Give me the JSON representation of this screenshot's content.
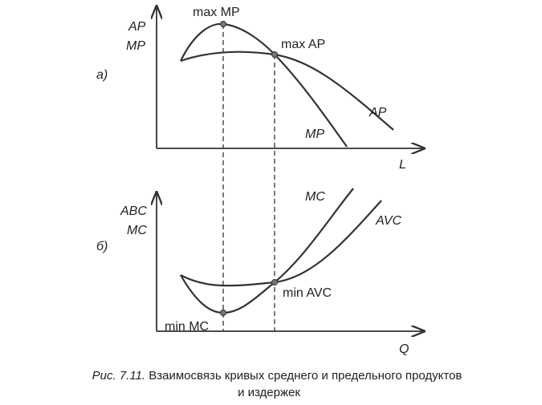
{
  "panel_a": {
    "label": "а)",
    "y_axis_label": [
      "AP",
      "MP"
    ],
    "x_axis_label": "L",
    "annotations": {
      "max_mp": "max MP",
      "max_ap": "max AP"
    },
    "curves": {
      "ap": "AP",
      "mp": "MP"
    }
  },
  "panel_b": {
    "label": "б)",
    "y_axis_label": [
      "ABC",
      "MC"
    ],
    "x_axis_label": "Q",
    "annotations": {
      "min_avc": "min AVC",
      "min_mc": "min MC"
    },
    "curves": {
      "mc": "MC",
      "avc": "AVC"
    }
  },
  "caption": {
    "figure_label": "Рис. 7.11.",
    "lines": [
      "Взаимосвязь кривых среднего и предельного  продуктов",
      "и издержек"
    ]
  }
}
